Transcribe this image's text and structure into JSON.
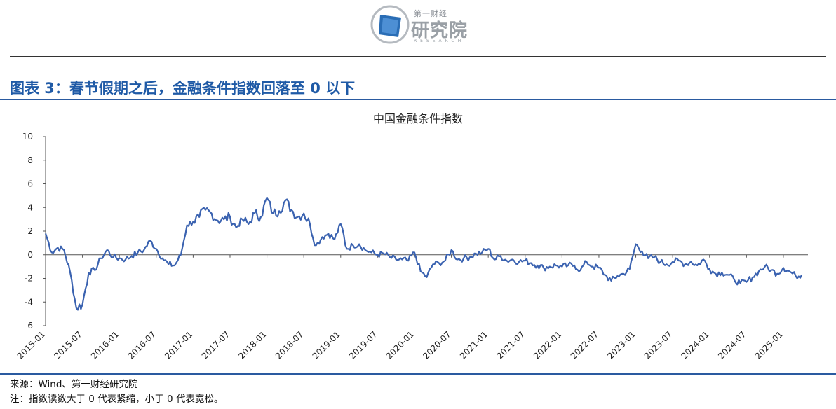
{
  "header": {
    "logo_text_small": "第一财经",
    "logo_text_big": "研究院",
    "logo_text_en": "RESEARCH",
    "colors": {
      "logo_blue": "#2a6db5",
      "accent": "#1f5aa6"
    }
  },
  "figure_title": "图表 3：春节假期之后，金融条件指数回落至 0 以下",
  "footer": {
    "source": "来源：Wind、第一财经研究院",
    "note": "注：指数读数大于 0 代表紧缩，小于 0 代表宽松。"
  },
  "chart_data": {
    "type": "line",
    "title": "中国金融条件指数",
    "xlabel": "",
    "ylabel": "",
    "ylim": [
      -6,
      10
    ],
    "yticks": [
      "-6",
      "-4",
      "-2",
      "0",
      "2",
      "4",
      "6",
      "8",
      "10"
    ],
    "xticks": [
      "2015-01",
      "2015-07",
      "2016-01",
      "2016-07",
      "2017-01",
      "2017-07",
      "2018-01",
      "2018-07",
      "2019-01",
      "2019-07",
      "2020-01",
      "2020-07",
      "2021-01",
      "2021-07",
      "2022-01",
      "2022-07",
      "2023-01",
      "2023-07",
      "2024-01",
      "2024-07",
      "2025-01"
    ],
    "line_color": "#3a62b0",
    "series": [
      {
        "x": [
          "2015-01",
          "2015-02",
          "2015-03",
          "2015-04",
          "2015-05",
          "2015-06",
          "2015-07",
          "2015-08",
          "2015-09",
          "2015-10",
          "2015-11",
          "2015-12",
          "2016-01",
          "2016-02",
          "2016-03",
          "2016-04",
          "2016-05",
          "2016-06",
          "2016-07",
          "2016-08",
          "2016-09",
          "2016-10",
          "2016-11",
          "2016-12",
          "2017-01",
          "2017-02",
          "2017-03",
          "2017-04",
          "2017-05",
          "2017-06",
          "2017-07",
          "2017-08",
          "2017-09",
          "2017-10",
          "2017-11",
          "2017-12",
          "2018-01",
          "2018-02",
          "2018-03",
          "2018-04",
          "2018-05",
          "2018-06",
          "2018-07",
          "2018-08",
          "2018-09",
          "2018-10",
          "2018-11",
          "2018-12",
          "2019-01",
          "2019-02",
          "2019-03",
          "2019-04",
          "2019-05",
          "2019-06",
          "2019-07",
          "2019-08",
          "2019-09",
          "2019-10",
          "2019-11",
          "2019-12",
          "2020-01",
          "2020-02",
          "2020-03",
          "2020-04",
          "2020-05",
          "2020-06",
          "2020-07",
          "2020-08",
          "2020-09",
          "2020-10",
          "2020-11",
          "2020-12",
          "2021-01",
          "2021-02",
          "2021-03",
          "2021-04",
          "2021-05",
          "2021-06",
          "2021-07",
          "2021-08",
          "2021-09",
          "2021-10",
          "2021-11",
          "2021-12",
          "2022-01",
          "2022-02",
          "2022-03",
          "2022-04",
          "2022-05",
          "2022-06",
          "2022-07",
          "2022-08",
          "2022-09",
          "2022-10",
          "2022-11",
          "2022-12",
          "2023-01",
          "2023-02",
          "2023-03",
          "2023-04",
          "2023-05",
          "2023-06",
          "2023-07",
          "2023-08",
          "2023-09",
          "2023-10",
          "2023-11",
          "2023-12",
          "2024-01",
          "2024-02",
          "2024-03",
          "2024-04",
          "2024-05",
          "2024-06",
          "2024-07",
          "2024-08",
          "2024-09",
          "2024-10",
          "2024-11",
          "2024-12",
          "2025-01",
          "2025-02",
          "2025-03",
          "2025-04"
        ],
        "values": [
          1.8,
          0.2,
          0.6,
          0.4,
          -1.5,
          -4.5,
          -4.2,
          -1.5,
          -1.3,
          -0.3,
          0.4,
          -0.2,
          -0.3,
          -0.4,
          -0.1,
          0.2,
          0.4,
          1.2,
          0.5,
          -0.3,
          -0.8,
          -0.9,
          0.0,
          2.5,
          2.8,
          3.2,
          3.8,
          3.5,
          2.9,
          3.0,
          3.2,
          2.3,
          3.0,
          2.6,
          3.5,
          3.2,
          4.8,
          3.5,
          3.7,
          4.6,
          3.8,
          3.2,
          3.5,
          2.6,
          0.8,
          1.5,
          1.8,
          1.3,
          2.6,
          0.5,
          0.8,
          0.9,
          0.4,
          0.2,
          0.0,
          0.1,
          -0.2,
          -0.4,
          -0.4,
          -0.5,
          0.2,
          -1.4,
          -1.9,
          -0.8,
          -0.7,
          -0.5,
          0.4,
          -0.4,
          -0.3,
          -0.2,
          0.1,
          0.2,
          0.5,
          -0.4,
          -0.1,
          -0.5,
          -0.4,
          -0.6,
          -0.5,
          -0.7,
          -0.9,
          -1.1,
          -1.0,
          -0.9,
          -1.0,
          -0.9,
          -0.9,
          -1.3,
          -0.6,
          -1.0,
          -1.1,
          -1.7,
          -2.2,
          -1.8,
          -1.6,
          -1.2,
          0.9,
          0.3,
          -0.3,
          -0.2,
          -0.6,
          -0.8,
          -0.6,
          -0.5,
          -0.8,
          -0.6,
          -0.9,
          -0.4,
          -1.2,
          -1.6,
          -1.5,
          -1.7,
          -2.1,
          -2.4,
          -2.3,
          -1.9,
          -1.4,
          -1.0,
          -1.3,
          -1.6,
          -1.1,
          -1.4,
          -1.8,
          -1.7
        ]
      }
    ]
  }
}
